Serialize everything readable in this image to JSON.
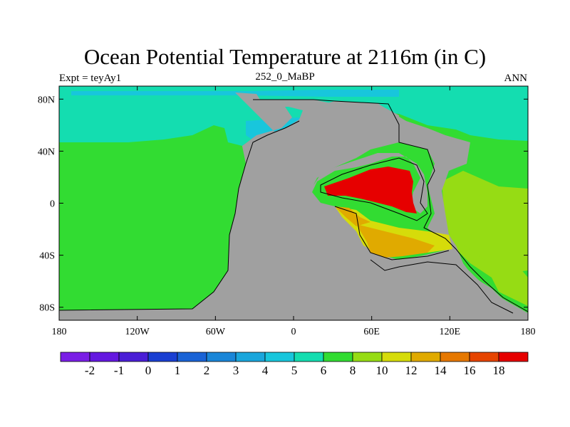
{
  "title": "Ocean Potential Temperature at 2116m (in C)",
  "subtitle_left": "Expt = teyAy1",
  "subtitle_center": "252_0_MaBP",
  "subtitle_right": "ANN",
  "x_ticks": [
    "180",
    "120W",
    "60W",
    "0",
    "60E",
    "120E",
    "180"
  ],
  "y_ticks": [
    "80N",
    "40N",
    "0",
    "40S",
    "80S"
  ],
  "colorbar": {
    "labels": [
      "-2",
      "-1",
      "0",
      "1",
      "2",
      "3",
      "4",
      "5",
      "6",
      "8",
      "10",
      "12",
      "14",
      "16",
      "18"
    ],
    "colors": [
      "#7a1ee6",
      "#6418e0",
      "#4a1ed6",
      "#1a3fd2",
      "#1a63d6",
      "#1a86d8",
      "#1aa6dc",
      "#18c6dc",
      "#14ddb0",
      "#32dc32",
      "#96dc14",
      "#d6dc0a",
      "#e0aa00",
      "#e67800",
      "#e64400",
      "#e60000"
    ]
  },
  "colors": {
    "land": "#a0a0a0",
    "cold_north": "#14ddb0",
    "cool_band": "#18c6dc",
    "deep_ocean": "#32dc32",
    "yellow_green": "#96dc14",
    "yellow": "#d6dc0a",
    "orange": "#e0aa00",
    "red": "#e60000"
  }
}
